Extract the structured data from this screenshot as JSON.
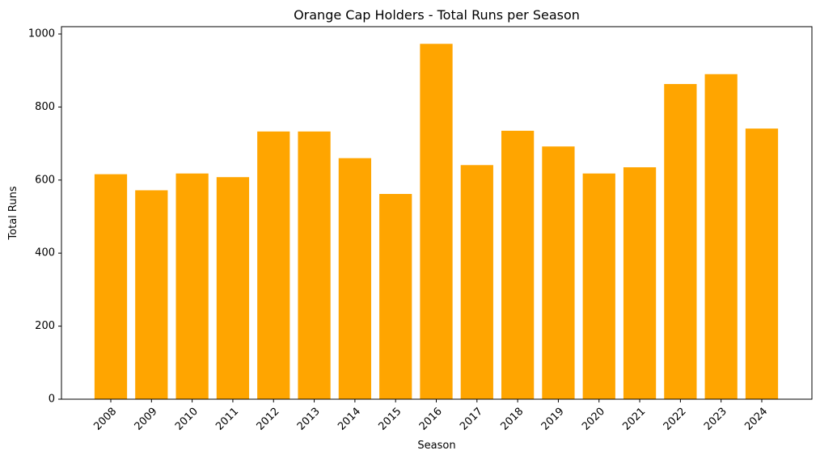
{
  "chart_data": {
    "type": "bar",
    "title": "Orange Cap Holders - Total Runs per Season",
    "xlabel": "Season",
    "ylabel": "Total Runs",
    "categories": [
      "2008",
      "2009",
      "2010",
      "2011",
      "2012",
      "2013",
      "2014",
      "2015",
      "2016",
      "2017",
      "2018",
      "2019",
      "2020",
      "2021",
      "2022",
      "2023",
      "2024"
    ],
    "values": [
      616,
      572,
      618,
      608,
      733,
      733,
      660,
      562,
      973,
      641,
      735,
      692,
      618,
      635,
      863,
      890,
      741
    ],
    "ylim": [
      0,
      1020
    ],
    "yticks": [
      0,
      200,
      400,
      600,
      800,
      1000
    ],
    "grid": false,
    "bar_color": "#ffa500"
  }
}
